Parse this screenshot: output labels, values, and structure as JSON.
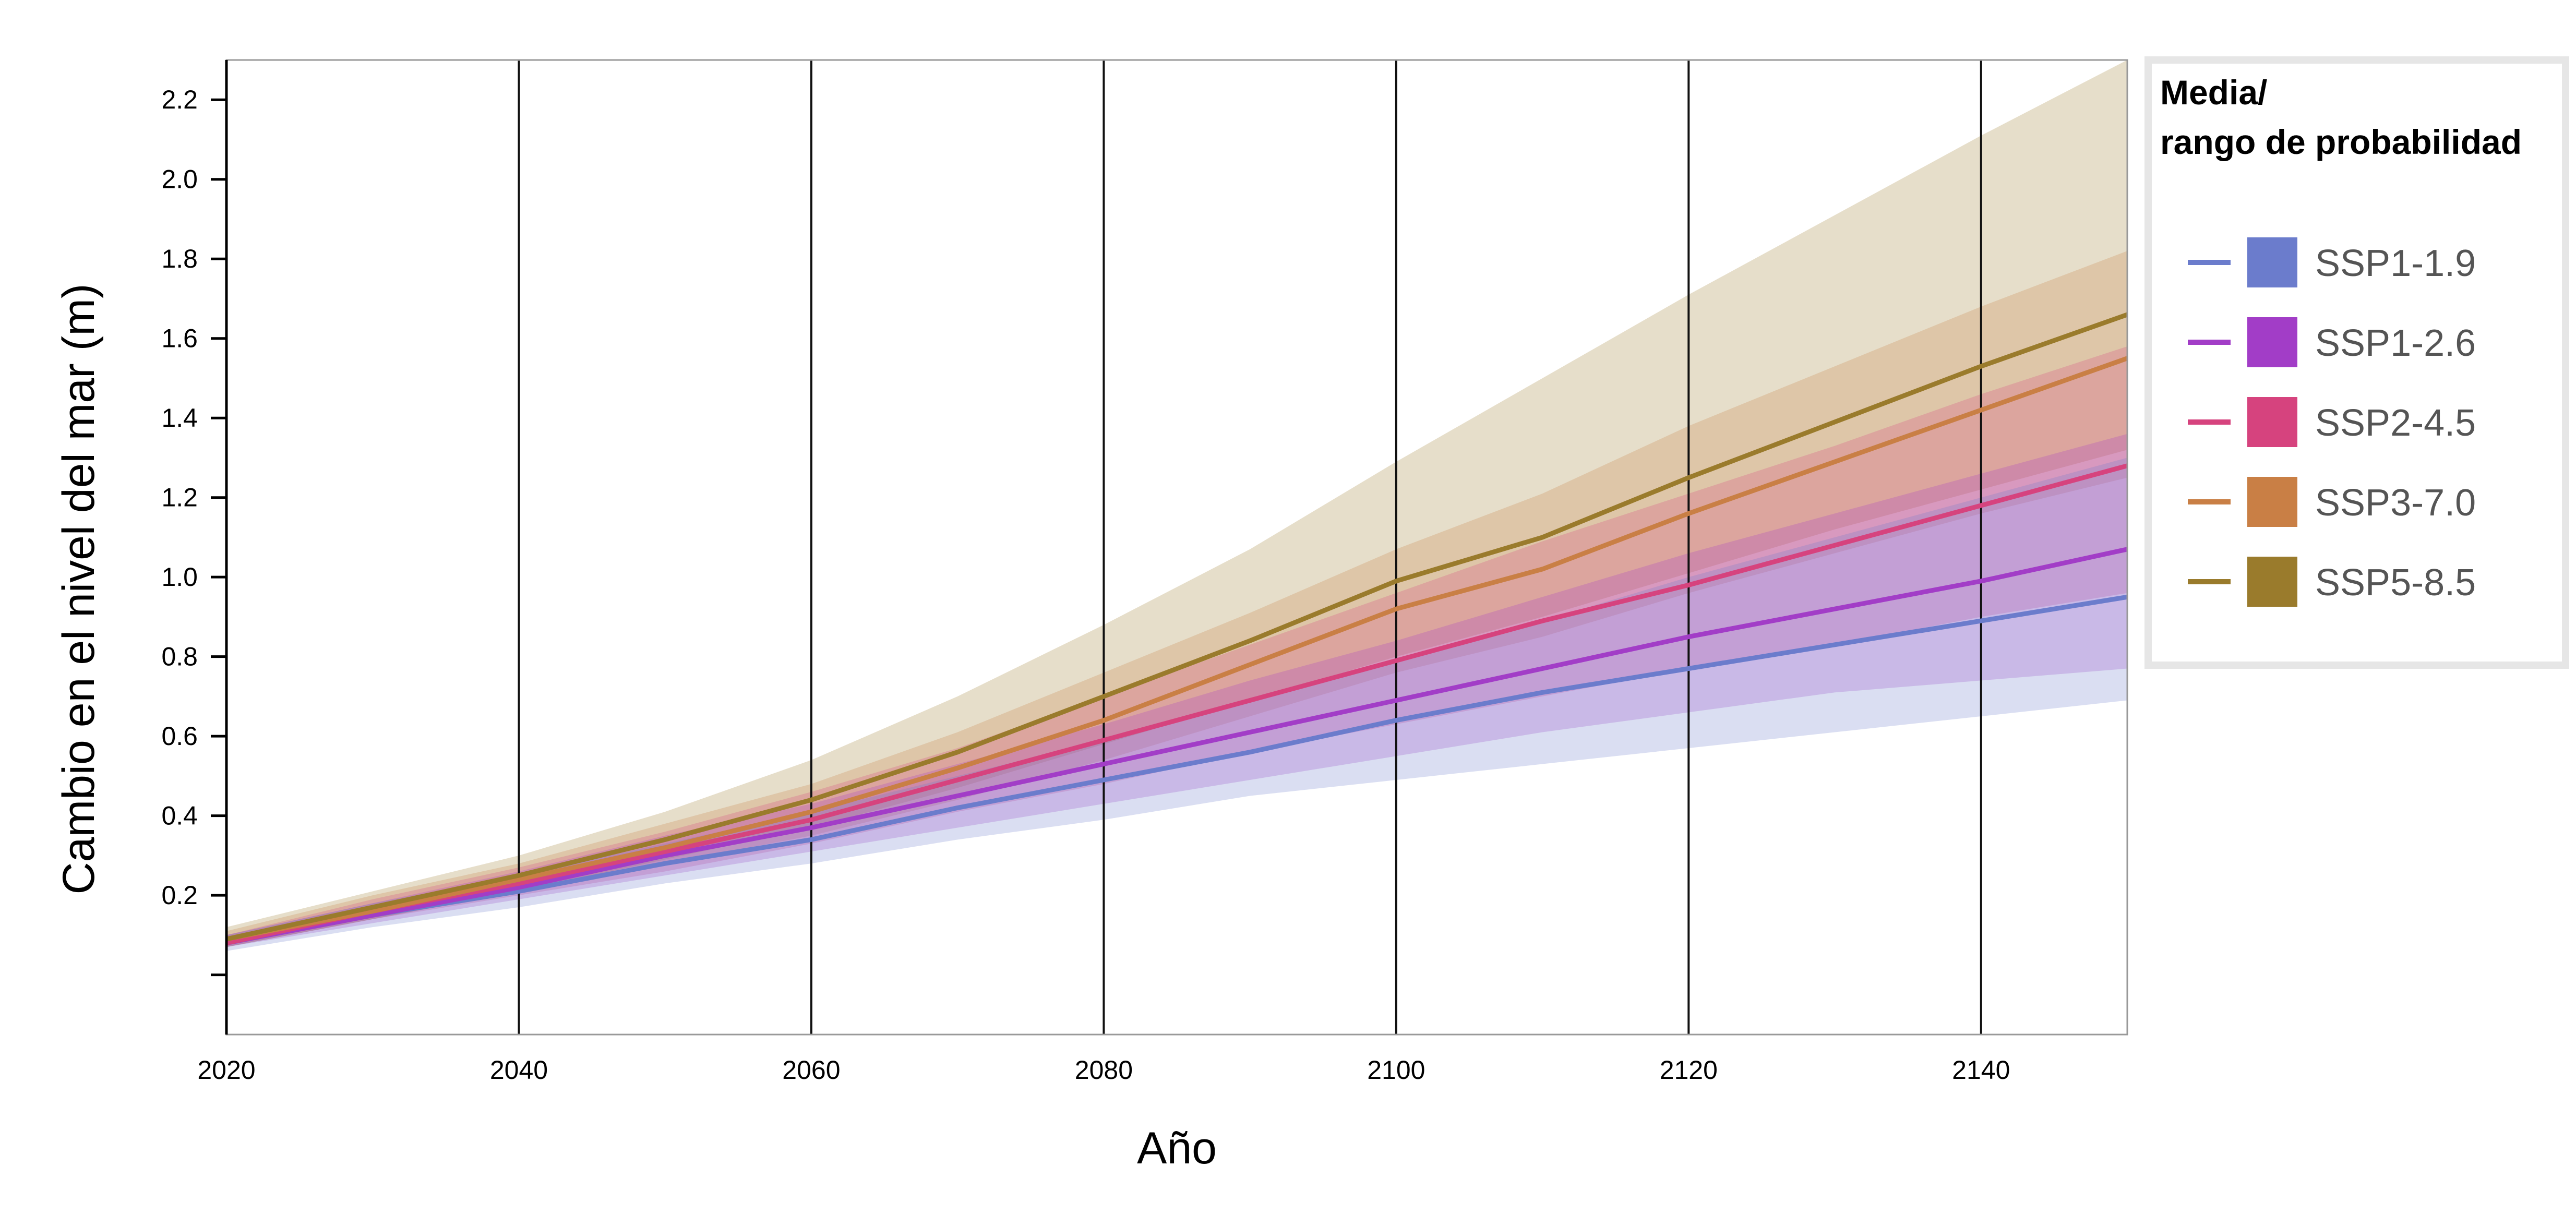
{
  "chart_data": {
    "type": "area",
    "title": "",
    "xlabel": "Año",
    "ylabel": "Cambio en el nivel del mar (m)",
    "xlim": [
      2020,
      2150
    ],
    "ylim": [
      -0.15,
      2.3
    ],
    "x_ticks": [
      2020,
      2040,
      2060,
      2080,
      2100,
      2120,
      2140
    ],
    "y_ticks": [
      0.2,
      0.4,
      0.6,
      0.8,
      1.0,
      1.2,
      1.4,
      1.6,
      1.8,
      2.0,
      2.2
    ],
    "y_tick_labels": [
      "0.2",
      "0.4",
      "0.6",
      "0.8",
      "1.0",
      "1.2",
      "1.4",
      "1.6",
      "1.8",
      "2.0",
      "2.2"
    ],
    "x_tick_labels": [
      "2020",
      "2040",
      "2060",
      "2080",
      "2100",
      "2120",
      "2140"
    ],
    "grid": "vertical lines at x ticks",
    "legend": {
      "title_line1": "Media/",
      "title_line2": "rango de probabilidad",
      "placement": "right"
    },
    "x": [
      2020,
      2030,
      2040,
      2050,
      2060,
      2070,
      2080,
      2090,
      2100,
      2110,
      2120,
      2130,
      2140,
      2150
    ],
    "series": [
      {
        "name": "SSP1-1.9",
        "color": "#6b7ccc",
        "mean": [
          0.08,
          0.15,
          0.21,
          0.28,
          0.34,
          0.42,
          0.49,
          0.56,
          0.64,
          0.71,
          0.77,
          0.83,
          0.89,
          0.95
        ],
        "low": [
          0.06,
          0.12,
          0.17,
          0.23,
          0.28,
          0.34,
          0.39,
          0.45,
          0.49,
          0.53,
          0.57,
          0.61,
          0.65,
          0.69
        ],
        "high": [
          0.1,
          0.18,
          0.25,
          0.33,
          0.41,
          0.5,
          0.59,
          0.69,
          0.79,
          0.89,
          1.0,
          1.1,
          1.2,
          1.3
        ]
      },
      {
        "name": "SSP1-2.6",
        "color": "#a23dc7",
        "mean": [
          0.08,
          0.15,
          0.22,
          0.3,
          0.37,
          0.45,
          0.53,
          0.61,
          0.69,
          0.77,
          0.85,
          0.92,
          0.99,
          1.07
        ],
        "low": [
          0.07,
          0.13,
          0.19,
          0.25,
          0.31,
          0.37,
          0.43,
          0.49,
          0.55,
          0.61,
          0.66,
          0.71,
          0.74,
          0.77
        ],
        "high": [
          0.1,
          0.18,
          0.26,
          0.35,
          0.43,
          0.53,
          0.63,
          0.74,
          0.84,
          0.95,
          1.06,
          1.16,
          1.26,
          1.36
        ]
      },
      {
        "name": "SSP2-4.5",
        "color": "#d6437e",
        "mean": [
          0.08,
          0.16,
          0.23,
          0.31,
          0.39,
          0.49,
          0.59,
          0.69,
          0.79,
          0.89,
          0.98,
          1.08,
          1.18,
          1.28
        ],
        "low": [
          0.07,
          0.14,
          0.2,
          0.26,
          0.33,
          0.41,
          0.48,
          0.56,
          0.63,
          0.7,
          0.77,
          0.83,
          0.9,
          0.96
        ],
        "high": [
          0.1,
          0.19,
          0.27,
          0.36,
          0.46,
          0.57,
          0.7,
          0.83,
          0.96,
          1.09,
          1.21,
          1.33,
          1.46,
          1.58
        ]
      },
      {
        "name": "SSP3-7.0",
        "color": "#c97f45",
        "mean": [
          0.09,
          0.16,
          0.24,
          0.32,
          0.41,
          0.52,
          0.64,
          0.78,
          0.92,
          1.02,
          1.16,
          1.29,
          1.42,
          1.55
        ],
        "low": [
          0.07,
          0.14,
          0.21,
          0.28,
          0.35,
          0.44,
          0.54,
          0.65,
          0.76,
          0.85,
          0.96,
          1.06,
          1.16,
          1.25
        ],
        "high": [
          0.11,
          0.2,
          0.28,
          0.38,
          0.48,
          0.61,
          0.76,
          0.91,
          1.07,
          1.21,
          1.38,
          1.53,
          1.68,
          1.82
        ]
      },
      {
        "name": "SSP5-8.5",
        "color": "#9a7b2c",
        "mean": [
          0.09,
          0.17,
          0.25,
          0.34,
          0.44,
          0.56,
          0.7,
          0.84,
          0.99,
          1.1,
          1.25,
          1.39,
          1.53,
          1.66
        ],
        "low": [
          0.07,
          0.14,
          0.21,
          0.29,
          0.37,
          0.47,
          0.58,
          0.69,
          0.8,
          0.9,
          1.01,
          1.12,
          1.22,
          1.32
        ],
        "high": [
          0.12,
          0.21,
          0.3,
          0.41,
          0.54,
          0.7,
          0.88,
          1.07,
          1.29,
          1.5,
          1.71,
          1.91,
          2.11,
          2.3
        ]
      }
    ]
  }
}
